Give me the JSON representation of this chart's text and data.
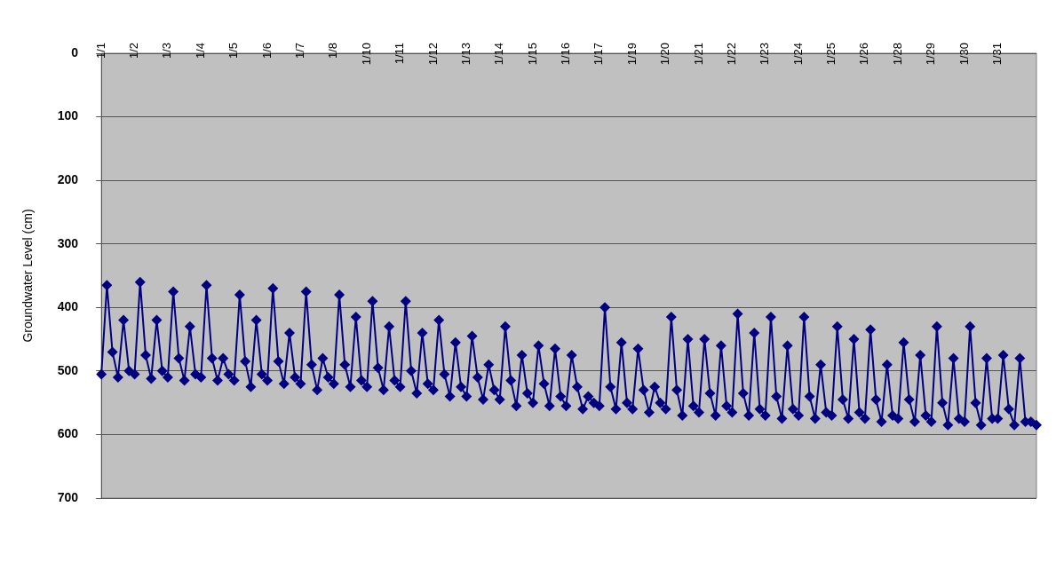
{
  "chart_data": {
    "type": "line",
    "ylabel": "Groundwater Level (cm)",
    "categories": [
      "1/1",
      null,
      null,
      null,
      null,
      null,
      "1/2",
      null,
      null,
      null,
      null,
      null,
      "1/3",
      null,
      null,
      null,
      null,
      null,
      "1/4",
      null,
      null,
      null,
      null,
      null,
      "1/5",
      null,
      null,
      null,
      null,
      null,
      "1/6",
      null,
      null,
      null,
      null,
      null,
      "1/7",
      null,
      null,
      null,
      null,
      null,
      "1/8",
      null,
      null,
      null,
      null,
      null,
      "1/10",
      null,
      null,
      null,
      null,
      null,
      "1/11",
      null,
      null,
      null,
      null,
      null,
      "1/12",
      null,
      null,
      null,
      null,
      null,
      "1/13",
      null,
      null,
      null,
      null,
      null,
      "1/14",
      null,
      null,
      null,
      null,
      null,
      "1/15",
      null,
      null,
      null,
      null,
      null,
      "1/16",
      null,
      null,
      null,
      null,
      null,
      "1/17",
      null,
      null,
      null,
      null,
      null,
      "1/19",
      null,
      null,
      null,
      null,
      null,
      "1/20",
      null,
      null,
      null,
      null,
      null,
      "1/21",
      null,
      null,
      null,
      null,
      null,
      "1/22",
      null,
      null,
      null,
      null,
      null,
      "1/23",
      null,
      null,
      null,
      null,
      null,
      "1/24",
      null,
      null,
      null,
      null,
      null,
      "1/25",
      null,
      null,
      null,
      null,
      null,
      "1/26",
      null,
      null,
      null,
      null,
      null,
      "1/28",
      null,
      null,
      null,
      null,
      null,
      "1/29",
      null,
      null,
      null,
      null,
      null,
      "1/30",
      null,
      null,
      null,
      null,
      null,
      "1/31",
      null,
      null,
      null,
      null,
      null,
      null,
      null
    ],
    "series": [
      {
        "color": "#000080",
        "values": [
          505,
          365,
          470,
          510,
          420,
          500,
          505,
          360,
          475,
          512,
          420,
          500,
          510,
          375,
          480,
          515,
          430,
          505,
          510,
          365,
          480,
          515,
          480,
          505,
          515,
          380,
          485,
          525,
          420,
          505,
          515,
          370,
          485,
          520,
          440,
          510,
          520,
          375,
          490,
          530,
          480,
          510,
          520,
          380,
          490,
          525,
          415,
          515,
          525,
          390,
          495,
          530,
          430,
          515,
          525,
          390,
          500,
          535,
          440,
          520,
          530,
          420,
          505,
          540,
          455,
          525,
          540,
          445,
          510,
          545,
          490,
          530,
          545,
          430,
          515,
          555,
          475,
          535,
          550,
          460,
          520,
          555,
          465,
          540,
          555,
          475,
          525,
          560,
          540,
          550,
          555,
          400,
          525,
          560,
          455,
          550,
          560,
          465,
          530,
          565,
          525,
          550,
          560,
          415,
          530,
          570,
          450,
          555,
          565,
          450,
          535,
          570,
          460,
          555,
          565,
          410,
          535,
          570,
          440,
          560,
          570,
          415,
          540,
          575,
          460,
          560,
          570,
          415,
          540,
          575,
          490,
          565,
          570,
          430,
          545,
          575,
          450,
          565,
          575,
          435,
          545,
          580,
          490,
          570,
          575,
          455,
          545,
          580,
          475,
          570,
          580,
          430,
          550,
          585,
          480,
          575,
          580,
          430,
          550,
          585,
          480,
          575,
          575,
          475,
          560,
          585,
          480,
          580,
          580,
          585
        ]
      }
    ],
    "ylim": [
      700,
      0
    ],
    "yticks": [
      0,
      100,
      200,
      300,
      400,
      500,
      600,
      700
    ],
    "grid": "y",
    "legend": false,
    "marker": "diamond",
    "line_style": "solid"
  }
}
